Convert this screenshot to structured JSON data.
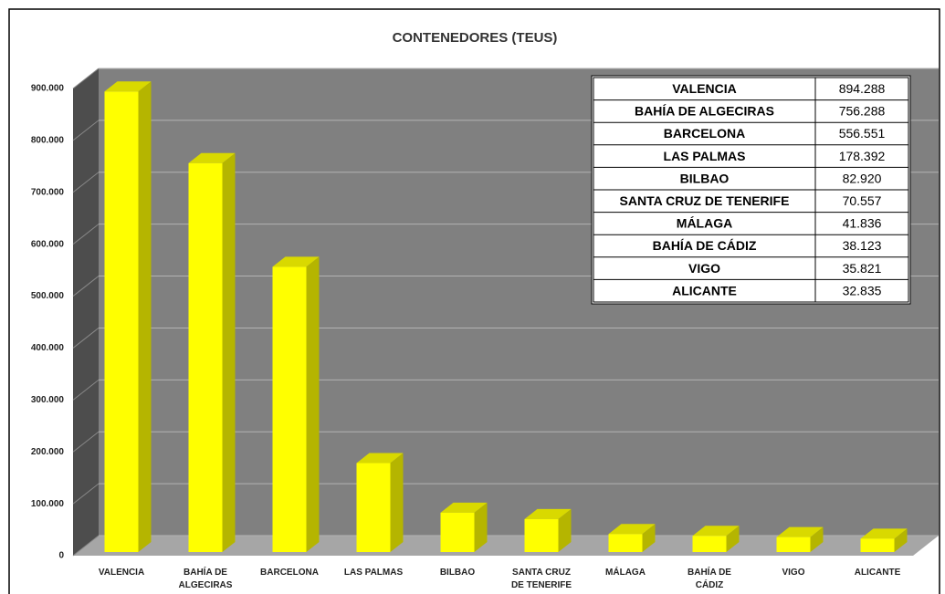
{
  "chart_data": {
    "type": "bar3d",
    "title": "CONTENEDORES (TEUS)",
    "categories": [
      "VALENCIA",
      "BAHÍA DE ALGECIRAS",
      "BARCELONA",
      "LAS PALMAS",
      "BILBAO",
      "SANTA CRUZ DE TENERIFE",
      "MÁLAGA",
      "BAHÍA DE CÁDIZ",
      "VIGO",
      "ALICANTE"
    ],
    "values": [
      894288,
      756288,
      556551,
      178392,
      82920,
      70557,
      41836,
      38123,
      35821,
      32835
    ],
    "value_labels": [
      "894.288",
      "756.288",
      "556.551",
      "178.392",
      "82.920",
      "70.557",
      "41.836",
      "38.123",
      "35.821",
      "32.835"
    ],
    "color": "#ffff00",
    "ylim": [
      0,
      900000
    ],
    "yticks": [
      0,
      {
        "value": 100000,
        "label": "100.000"
      },
      {
        "value": 200000,
        "label": "200.000"
      },
      {
        "value": 300000,
        "label": "300.000"
      },
      {
        "value": 400000,
        "label": "400.000"
      },
      {
        "value": 500000,
        "label": "500.000"
      },
      {
        "value": 600000,
        "label": "600.000"
      },
      {
        "value": 700000,
        "label": "700.000"
      },
      {
        "value": 800000,
        "label": "800.000"
      },
      {
        "value": 900000,
        "label": "900.000"
      }
    ],
    "grid": true,
    "data_table": true
  }
}
